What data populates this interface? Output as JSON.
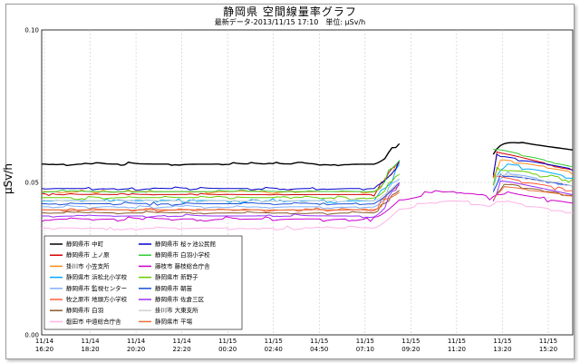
{
  "chart_data": {
    "type": "line",
    "title": "静岡県 空間線量率グラフ",
    "subtitle": "最新データ-2013/11/15 17:10　単位: μSv/h",
    "ylabel": "μSv/h",
    "ylim": [
      0.0,
      0.1
    ],
    "y_ticks": [
      "0.00",
      "0.05",
      "0.10"
    ],
    "x_ticks": [
      [
        "11/14",
        "16:20"
      ],
      [
        "11/14",
        "18:20"
      ],
      [
        "11/14",
        "20:20"
      ],
      [
        "11/14",
        "22:20"
      ],
      [
        "11/15",
        "00:20"
      ],
      [
        "11/15",
        "02:40"
      ],
      [
        "11/15",
        "04:50"
      ],
      [
        "11/15",
        "07:10"
      ],
      [
        "11/15",
        "09:20"
      ],
      [
        "11/15",
        "11:20"
      ],
      [
        "11/15",
        "13:20"
      ],
      [
        "11/15",
        "15:20"
      ]
    ],
    "grid": true,
    "legend_position": "bottom-left",
    "series": [
      {
        "name": "静岡県市 中町",
        "color": "#000000",
        "base": 0.056,
        "after": 0.064,
        "noise": 0.0006,
        "segments": [
          [
            0,
            99
          ],
          [
            125,
            147
          ]
        ]
      },
      {
        "name": "静岡県市 上ノ原",
        "color": "#d40000",
        "base": 0.046,
        "after": 0.06,
        "noise": 0.0006,
        "segments": [
          [
            0,
            99
          ],
          [
            125,
            147
          ]
        ]
      },
      {
        "name": "掛川市 小笠支所",
        "color": "#ff8c1a",
        "base": 0.047,
        "after": 0.058,
        "noise": 0.0007,
        "segments": [
          [
            0,
            99
          ],
          [
            125,
            147
          ]
        ]
      },
      {
        "name": "静岡県市 浜松北小学校",
        "color": "#00aaff",
        "base": 0.044,
        "after": 0.057,
        "noise": 0.0007,
        "segments": [
          [
            0,
            99
          ],
          [
            125,
            147
          ]
        ]
      },
      {
        "name": "静岡県市 監視センター",
        "color": "#7fb0ff",
        "base": 0.042,
        "after": 0.054,
        "noise": 0.0006,
        "segments": [
          [
            0,
            99
          ],
          [
            125,
            147
          ]
        ]
      },
      {
        "name": "牧之原市 地頭方小学校",
        "color": "#ff5a3c",
        "base": 0.041,
        "after": 0.052,
        "noise": 0.0007,
        "segments": [
          [
            0,
            99
          ],
          [
            125,
            147
          ]
        ]
      },
      {
        "name": "静岡県市 白羽",
        "color": "#8a5a2b",
        "base": 0.04,
        "after": 0.05,
        "noise": 0.0006,
        "segments": [
          [
            0,
            99
          ],
          [
            125,
            147
          ]
        ]
      },
      {
        "name": "磐田市 中遠総合庁舎",
        "color": "#ffb3e6",
        "base": 0.035,
        "after": 0.044,
        "noise": 0.0007,
        "segments": [
          [
            0,
            147
          ]
        ]
      },
      {
        "name": "静岡県市 桜ヶ池公民館",
        "color": "#0000cc",
        "base": 0.048,
        "after": 0.059,
        "noise": 0.0006,
        "segments": [
          [
            0,
            99
          ],
          [
            125,
            147
          ]
        ]
      },
      {
        "name": "静岡県市 白羽小学校",
        "color": "#33cc33",
        "base": 0.047,
        "after": 0.061,
        "noise": 0.0006,
        "segments": [
          [
            0,
            99
          ],
          [
            125,
            147
          ]
        ]
      },
      {
        "name": "藤枝市 藤枝総合庁舎",
        "color": "#cc00cc",
        "base": 0.038,
        "after": 0.047,
        "noise": 0.0008,
        "segments": [
          [
            0,
            147
          ]
        ]
      },
      {
        "name": "静岡県市 新野子",
        "color": "#66cc00",
        "base": 0.045,
        "after": 0.055,
        "noise": 0.0007,
        "segments": [
          [
            0,
            99
          ],
          [
            125,
            147
          ]
        ]
      },
      {
        "name": "静岡県市 朝苗",
        "color": "#1a4fd8",
        "base": 0.043,
        "after": 0.053,
        "noise": 0.0006,
        "segments": [
          [
            0,
            99
          ],
          [
            125,
            147
          ]
        ]
      },
      {
        "name": "静岡県市 佐倉三区",
        "color": "#9b30ff",
        "base": 0.039,
        "after": 0.051,
        "noise": 0.0007,
        "segments": [
          [
            0,
            99
          ],
          [
            125,
            147
          ]
        ]
      },
      {
        "name": "掛川市 大東支所",
        "color": "#cfcfcf",
        "base": 0.044,
        "after": 0.053,
        "noise": 0.0006,
        "segments": [
          [
            0,
            99
          ],
          [
            125,
            147
          ]
        ]
      },
      {
        "name": "静岡県市 平場",
        "color": "#e8703a",
        "base": 0.041,
        "after": 0.049,
        "noise": 0.0006,
        "segments": [
          [
            0,
            99
          ],
          [
            125,
            147
          ]
        ]
      }
    ]
  }
}
